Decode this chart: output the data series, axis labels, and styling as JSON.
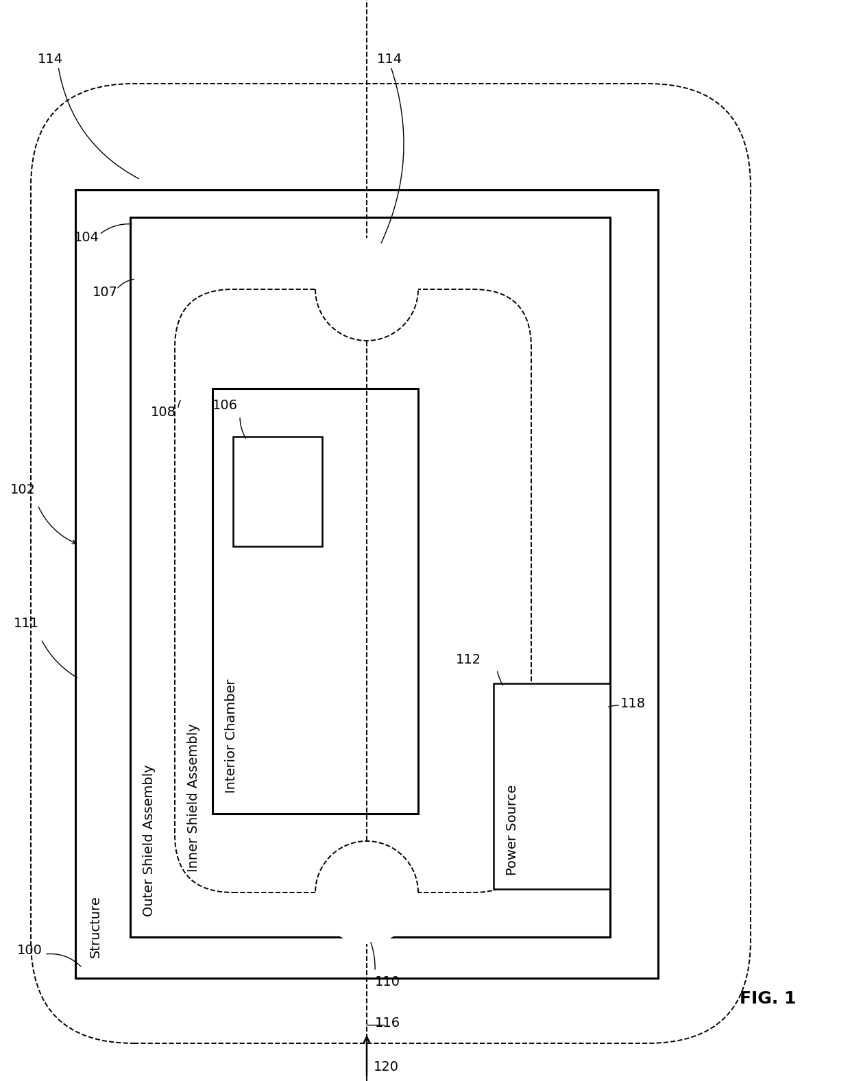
{
  "fig_label": "FIG. 1",
  "bg_color": "#ffffff",
  "line_color": "#000000",
  "lw_thick": 2.2,
  "lw_medium": 1.8,
  "lw_thin": 1.4,
  "fs_ref": 14,
  "fs_name": 14,
  "structure_label": "Structure",
  "outer_shield_label": "Outer Shield Assembly",
  "inner_shield_label": "Inner Shield Assembly",
  "interior_chamber_label": "Interior Chamber",
  "power_source_label": "Power Source",
  "fig1_label": "FIG. 1"
}
